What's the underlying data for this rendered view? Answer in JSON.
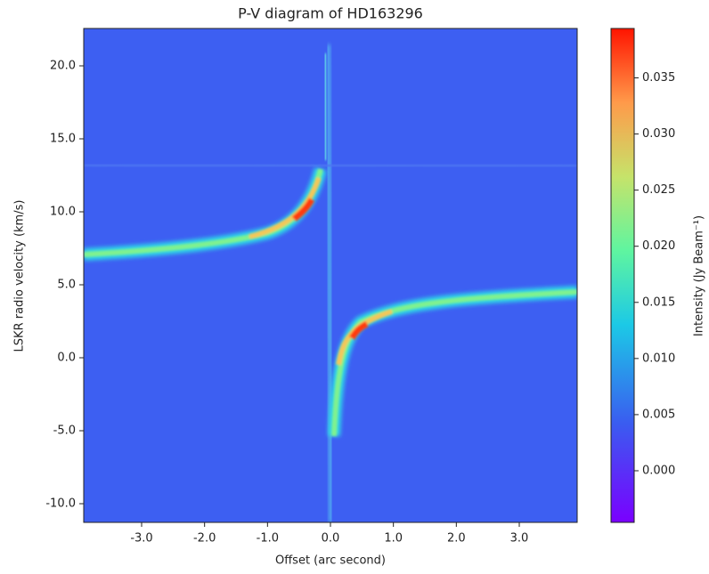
{
  "chart_data": {
    "type": "heatmap",
    "title": "P-V diagram of HD163296",
    "x_label": "Offset (arc second)",
    "y_label": "LSKR radio velocity (km/s)",
    "colorbar_label": "Intensity (Jy Beam⁻¹)",
    "xlim": [
      -3.92,
      3.92
    ],
    "xticks": [
      {
        "value": -3,
        "label": "-3.0"
      },
      {
        "value": -2,
        "label": "-2.0"
      },
      {
        "value": -1,
        "label": "-1.0"
      },
      {
        "value": 0,
        "label": "0.0"
      },
      {
        "value": 1,
        "label": "1.0"
      },
      {
        "value": 2,
        "label": "2.0"
      },
      {
        "value": 3,
        "label": "3.0"
      }
    ],
    "ylim": [
      -11.28,
      22.56
    ],
    "yticks": [
      {
        "value": -10,
        "label": "-10.0"
      },
      {
        "value": -5,
        "label": "-5.0"
      },
      {
        "value": 0,
        "label": "0.0"
      },
      {
        "value": 5,
        "label": "5.0"
      },
      {
        "value": 10,
        "label": "10.0"
      },
      {
        "value": 15,
        "label": "15.0"
      },
      {
        "value": 20,
        "label": "20.0"
      }
    ],
    "clim": [
      -0.0046,
      0.0394
    ],
    "cticks": [
      {
        "value": 0,
        "label": "0.000"
      },
      0.005,
      {
        "value": 0.01,
        "label": "0.010"
      },
      0.015,
      {
        "value": 0.02,
        "label": "0.020"
      },
      0.025,
      {
        "value": 0.03,
        "label": "0.030"
      },
      0.035
    ]
  }
}
